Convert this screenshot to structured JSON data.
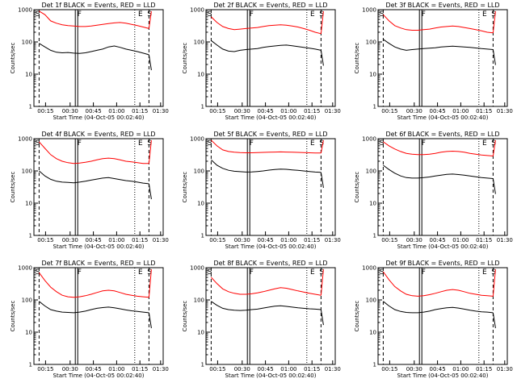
{
  "chart_data": [
    {
      "type": "line",
      "title": "Det 1f BLACK = Events, RED = LLD",
      "xlabel": "Start Time (04-Oct-05 00:02:40)",
      "ylabel": "Counts/sec",
      "yscale": "log",
      "ylim": [
        1,
        1000
      ],
      "x_ticks": [
        "00:15",
        "00:30",
        "00:45",
        "01:00",
        "01:15",
        "01:30"
      ],
      "y_ticks": [
        "1",
        "10",
        "100",
        "1000"
      ],
      "markers": [
        "S",
        "F",
        "E",
        "S"
      ],
      "series": [
        {
          "color": "#000000",
          "values": [
            90,
            70,
            55,
            48,
            46,
            47,
            45,
            44,
            46,
            50,
            55,
            60,
            70,
            75,
            68,
            60,
            55,
            50,
            45,
            40
          ]
        },
        {
          "color": "#ff0000",
          "values": [
            900,
            700,
            450,
            380,
            340,
            320,
            310,
            300,
            300,
            310,
            330,
            350,
            370,
            390,
            400,
            380,
            350,
            320,
            290,
            260
          ]
        }
      ]
    },
    {
      "type": "line",
      "title": "Det 2f BLACK = Events, RED = LLD",
      "xlabel": "Start Time (04-Oct-05 00:02:40)",
      "ylabel": "Counts/sec",
      "yscale": "log",
      "ylim": [
        1,
        1000
      ],
      "x_ticks": [
        "00:15",
        "00:30",
        "00:45",
        "01:00",
        "01:15",
        "01:30"
      ],
      "y_ticks": [
        "1",
        "10",
        "100",
        "1000"
      ],
      "markers": [
        "S",
        "F",
        "E",
        "S"
      ],
      "series": [
        {
          "color": "#000000",
          "values": [
            110,
            80,
            60,
            52,
            50,
            55,
            58,
            60,
            62,
            68,
            72,
            75,
            78,
            80,
            76,
            72,
            68,
            64,
            60,
            55
          ]
        },
        {
          "color": "#ff0000",
          "values": [
            600,
            400,
            300,
            260,
            240,
            250,
            260,
            270,
            280,
            300,
            320,
            330,
            340,
            330,
            310,
            290,
            260,
            230,
            200,
            180
          ]
        }
      ]
    },
    {
      "type": "line",
      "title": "Det 3f BLACK = Events, RED = LLD",
      "xlabel": "Start Time (04-Oct-05 00:02:40)",
      "ylabel": "Counts/sec",
      "yscale": "log",
      "ylim": [
        1,
        1000
      ],
      "x_ticks": [
        "00:15",
        "00:30",
        "00:45",
        "01:00",
        "01:15",
        "01:30"
      ],
      "y_ticks": [
        "1",
        "10",
        "100",
        "1000"
      ],
      "markers": [
        "S",
        "F",
        "E",
        "S"
      ],
      "series": [
        {
          "color": "#000000",
          "values": [
            120,
            90,
            70,
            60,
            55,
            58,
            60,
            62,
            64,
            66,
            70,
            72,
            74,
            72,
            70,
            68,
            65,
            62,
            60,
            58
          ]
        },
        {
          "color": "#ff0000",
          "values": [
            700,
            450,
            320,
            270,
            240,
            230,
            230,
            240,
            250,
            270,
            290,
            300,
            310,
            300,
            280,
            260,
            240,
            220,
            200,
            190
          ]
        }
      ]
    },
    {
      "type": "line",
      "title": "Det 4f BLACK = Events, RED = LLD",
      "xlabel": "Start Time (04-Oct-05 00:02:40)",
      "ylabel": "Counts/sec",
      "yscale": "log",
      "ylim": [
        1,
        1000
      ],
      "x_ticks": [
        "00:15",
        "00:30",
        "00:45",
        "01:00",
        "01:15",
        "01:30"
      ],
      "y_ticks": [
        "1",
        "10",
        "100",
        "1000"
      ],
      "markers": [
        "S",
        "F",
        "E",
        "S"
      ],
      "series": [
        {
          "color": "#000000",
          "values": [
            100,
            70,
            55,
            48,
            45,
            44,
            43,
            45,
            48,
            52,
            56,
            60,
            62,
            58,
            54,
            50,
            48,
            45,
            42,
            40
          ]
        },
        {
          "color": "#ff0000",
          "values": [
            800,
            500,
            320,
            240,
            200,
            180,
            170,
            175,
            185,
            200,
            220,
            240,
            250,
            240,
            220,
            200,
            190,
            180,
            170,
            170
          ]
        }
      ]
    },
    {
      "type": "line",
      "title": "Det 5f BLACK = Events, RED = LLD",
      "xlabel": "Start Time (04-Oct-05 00:02:40)",
      "ylabel": "Counts/sec",
      "yscale": "log",
      "ylim": [
        1,
        1000
      ],
      "x_ticks": [
        "00:15",
        "00:30",
        "00:45",
        "01:00",
        "01:15",
        "01:30"
      ],
      "y_ticks": [
        "1",
        "10",
        "100",
        "1000"
      ],
      "markers": [
        "S",
        "F",
        "E",
        "S"
      ],
      "series": [
        {
          "color": "#000000",
          "values": [
            220,
            150,
            120,
            105,
            98,
            95,
            92,
            93,
            96,
            100,
            106,
            110,
            114,
            112,
            108,
            104,
            100,
            96,
            92,
            90
          ]
        },
        {
          "color": "#ff0000",
          "values": [
            900,
            600,
            450,
            400,
            380,
            370,
            365,
            365,
            370,
            375,
            380,
            385,
            390,
            385,
            380,
            375,
            370,
            365,
            360,
            360
          ]
        }
      ]
    },
    {
      "type": "line",
      "title": "Det 6f BLACK = Events, RED = LLD",
      "xlabel": "Start Time (04-Oct-05 00:02:40)",
      "ylabel": "Counts/sec",
      "yscale": "log",
      "ylim": [
        1,
        1000
      ],
      "x_ticks": [
        "00:15",
        "00:30",
        "00:45",
        "01:00",
        "01:15",
        "01:30"
      ],
      "y_ticks": [
        "1",
        "10",
        "100",
        "1000"
      ],
      "markers": [
        "S",
        "F",
        "E",
        "S"
      ],
      "series": [
        {
          "color": "#000000",
          "values": [
            150,
            110,
            85,
            70,
            62,
            60,
            60,
            62,
            65,
            70,
            74,
            78,
            80,
            77,
            74,
            70,
            66,
            62,
            60,
            58
          ]
        },
        {
          "color": "#ff0000",
          "values": [
            800,
            600,
            480,
            400,
            350,
            330,
            320,
            320,
            330,
            350,
            380,
            400,
            410,
            400,
            380,
            350,
            330,
            310,
            300,
            290
          ]
        }
      ]
    },
    {
      "type": "line",
      "title": "Det 7f BLACK = Events, RED = LLD",
      "xlabel": "Start Time (04-Oct-05 00:02:40)",
      "ylabel": "Counts/sec",
      "yscale": "log",
      "ylim": [
        1,
        1000
      ],
      "x_ticks": [
        "00:15",
        "00:30",
        "00:45",
        "01:00",
        "01:15",
        "01:30"
      ],
      "y_ticks": [
        "1",
        "10",
        "100",
        "1000"
      ],
      "markers": [
        "S",
        "F",
        "E",
        "S"
      ],
      "series": [
        {
          "color": "#000000",
          "values": [
            90,
            65,
            50,
            45,
            42,
            41,
            40,
            42,
            45,
            50,
            55,
            58,
            60,
            57,
            53,
            49,
            46,
            44,
            42,
            40
          ]
        },
        {
          "color": "#ff0000",
          "values": [
            700,
            400,
            250,
            180,
            140,
            125,
            120,
            125,
            135,
            150,
            170,
            190,
            200,
            190,
            170,
            150,
            140,
            130,
            125,
            120
          ]
        }
      ]
    },
    {
      "type": "line",
      "title": "Det 8f BLACK = Events, RED = LLD",
      "xlabel": "Start Time (04-Oct-05 00:02:40)",
      "ylabel": "Counts/sec",
      "yscale": "log",
      "ylim": [
        1,
        1000
      ],
      "x_ticks": [
        "00:15",
        "00:30",
        "00:45",
        "01:00",
        "01:15",
        "01:30"
      ],
      "y_ticks": [
        "1",
        "10",
        "100",
        "1000"
      ],
      "markers": [
        "S",
        "F",
        "E",
        "S"
      ],
      "series": [
        {
          "color": "#000000",
          "values": [
            90,
            68,
            55,
            50,
            48,
            47,
            48,
            50,
            52,
            56,
            60,
            64,
            66,
            63,
            60,
            57,
            55,
            53,
            52,
            50
          ]
        },
        {
          "color": "#ff0000",
          "values": [
            500,
            320,
            220,
            180,
            160,
            150,
            150,
            155,
            165,
            180,
            200,
            220,
            240,
            230,
            210,
            190,
            175,
            160,
            150,
            140
          ]
        }
      ]
    },
    {
      "type": "line",
      "title": "Det 9f BLACK = Events, RED = LLD",
      "xlabel": "Start Time (04-Oct-05 00:02:40)",
      "ylabel": "Counts/sec",
      "yscale": "log",
      "ylim": [
        1,
        1000
      ],
      "x_ticks": [
        "00:15",
        "00:30",
        "00:45",
        "01:00",
        "01:15",
        "01:30"
      ],
      "y_ticks": [
        "1",
        "10",
        "100",
        "1000"
      ],
      "markers": [
        "S",
        "F",
        "E",
        "S"
      ],
      "series": [
        {
          "color": "#000000",
          "values": [
            90,
            65,
            50,
            44,
            41,
            40,
            40,
            42,
            45,
            50,
            54,
            57,
            59,
            56,
            52,
            48,
            45,
            43,
            42,
            40
          ]
        },
        {
          "color": "#ff0000",
          "values": [
            750,
            420,
            260,
            190,
            150,
            135,
            130,
            135,
            145,
            160,
            180,
            200,
            210,
            200,
            180,
            160,
            150,
            140,
            135,
            130
          ]
        }
      ]
    }
  ]
}
